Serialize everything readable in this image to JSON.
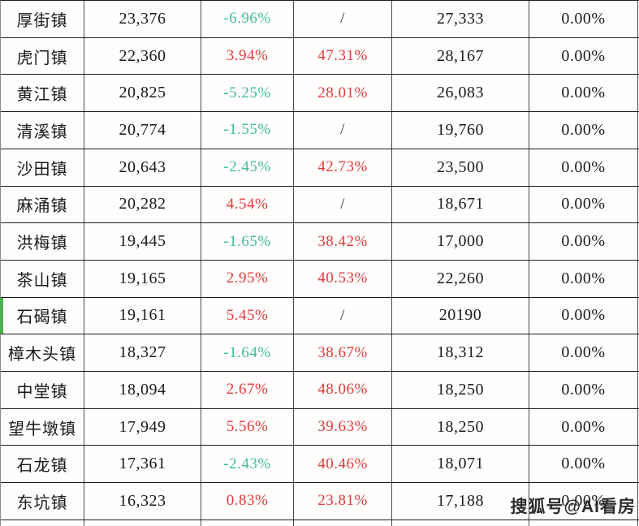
{
  "colors": {
    "positive": "#e23b3b",
    "negative": "#3fbe8e",
    "neutral_slash": "#333333",
    "text": "#1a1a1a",
    "highlight_bar": "#4caf50"
  },
  "watermark": {
    "text": "搜狐号@AI看房"
  },
  "chart_data": {
    "type": "table",
    "grid": true,
    "highlighted_row_index": 8,
    "rows": [
      [
        "厚街镇",
        "23,376",
        "-6.96%",
        "/",
        "27,333",
        "0.00%"
      ],
      [
        "虎门镇",
        "22,360",
        "3.94%",
        "47.31%",
        "28,167",
        "0.00%"
      ],
      [
        "黄江镇",
        "20,825",
        "-5.25%",
        "28.01%",
        "26,083",
        "0.00%"
      ],
      [
        "清溪镇",
        "20,774",
        "-1.55%",
        "/",
        "19,760",
        "0.00%"
      ],
      [
        "沙田镇",
        "20,643",
        "-2.45%",
        "42.73%",
        "23,500",
        "0.00%"
      ],
      [
        "麻涌镇",
        "20,282",
        "4.54%",
        "/",
        "18,671",
        "0.00%"
      ],
      [
        "洪梅镇",
        "19,445",
        "-1.65%",
        "38.42%",
        "17,000",
        "0.00%"
      ],
      [
        "茶山镇",
        "19,165",
        "2.95%",
        "40.53%",
        "22,260",
        "0.00%"
      ],
      [
        "石碣镇",
        "19,161",
        "5.45%",
        "/",
        "20190",
        "0.00%"
      ],
      [
        "樟木头镇",
        "18,327",
        "-1.64%",
        "38.67%",
        "18,312",
        "0.00%"
      ],
      [
        "中堂镇",
        "18,094",
        "2.67%",
        "48.06%",
        "18,250",
        "0.00%"
      ],
      [
        "望牛墩镇",
        "17,949",
        "5.56%",
        "39.63%",
        "18,250",
        "0.00%"
      ],
      [
        "石龙镇",
        "17,361",
        "-2.43%",
        "40.46%",
        "18,071",
        "0.00%"
      ],
      [
        "东坑镇",
        "16,323",
        "0.83%",
        "23.81%",
        "17,188",
        "0.00%"
      ]
    ]
  }
}
